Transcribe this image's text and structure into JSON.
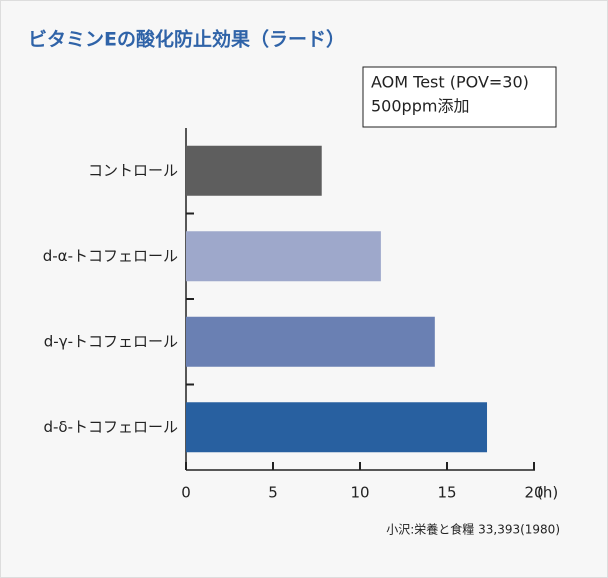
{
  "chart_data": {
    "type": "hbar",
    "title": "ビタミンEの酸化防止効果（ラード）",
    "annotation": [
      "AOM Test (POV=30)",
      "500ppm添加"
    ],
    "categories": [
      "コントロール",
      "d-α-トコフェロール",
      "d-γ-トコフェロール",
      "d-δ-トコフェロール"
    ],
    "values": [
      7.8,
      11.2,
      14.3,
      17.3
    ],
    "colors": [
      "#5e5e5e",
      "#9ea8cb",
      "#6a80b3",
      "#2860a0"
    ],
    "xlim": [
      0,
      20
    ],
    "xticks": [
      0,
      5,
      10,
      15,
      20
    ],
    "xlabel": "(h)",
    "source": "小沢:栄養と食糧 33,393(1980)"
  }
}
